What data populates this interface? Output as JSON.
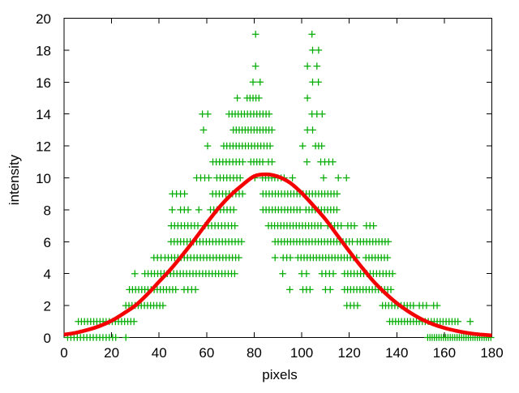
{
  "chart_data": {
    "type": "scatter",
    "title": "",
    "xlabel": "pixels",
    "ylabel": "intensity",
    "xlim": [
      0,
      180
    ],
    "ylim": [
      0,
      20
    ],
    "xtick_step": 20,
    "ytick_step": 2,
    "grid": false,
    "legend": "none",
    "marker_color": "#00ac00",
    "curve_color": "#f40000",
    "marker": "plus",
    "scatter_points_by_row": [
      {
        "y": 0,
        "segments": [
          [
            1.5,
            22,
            1.35
          ],
          [
            153,
            180,
            0.95
          ]
        ],
        "singles": [
          26
        ]
      },
      {
        "y": 1,
        "segments": [
          [
            6,
            30.5,
            1.3
          ],
          [
            137,
            166,
            1.25
          ]
        ],
        "singles": [
          170.9
        ]
      },
      {
        "y": 2,
        "segments": [
          [
            26,
            42.5,
            1.3
          ],
          [
            119,
            123.5,
            1.5
          ],
          [
            134,
            148,
            1.3
          ],
          [
            149.5,
            152.5,
            1.5
          ]
        ],
        "singles": [
          155.5,
          157
        ]
      },
      {
        "y": 3,
        "segments": [
          [
            27.5,
            47.5,
            1.3
          ],
          [
            50.5,
            55.5,
            1.6
          ],
          [
            118,
            137.5,
            1.3
          ]
        ],
        "singles": [
          95,
          100.5,
          102,
          103.5,
          110,
          112
        ]
      },
      {
        "y": 4,
        "segments": [
          [
            34,
            72,
            1.35
          ],
          [
            108.5,
            113.5,
            1.6
          ],
          [
            118,
            139,
            1.35
          ]
        ],
        "singles": [
          29.8,
          92,
          100,
          102
        ]
      },
      {
        "y": 5,
        "segments": [
          [
            37.8,
            40.8,
            1.5
          ],
          [
            42.5,
            74.5,
            1.35
          ],
          [
            92.2,
            95.2,
            1.5
          ],
          [
            98.4,
            124.2,
            1.3
          ],
          [
            127,
            137,
            1.3
          ]
        ],
        "singles": [
          88.8
        ]
      },
      {
        "y": 6,
        "segments": [
          [
            45,
            75,
            1.35
          ],
          [
            88.8,
            121.7,
            1.3
          ],
          [
            123.4,
            136.5,
            1.3
          ]
        ],
        "singles": []
      },
      {
        "y": 7,
        "segments": [
          [
            45.1,
            56.5,
            1.4
          ],
          [
            59.3,
            72.8,
            1.4
          ],
          [
            86,
            109.2,
            1.3
          ],
          [
            111,
            116.6,
            1.4
          ],
          [
            119.4,
            122.2,
            1.4
          ],
          [
            127.2,
            130.3,
            1.5
          ]
        ],
        "singles": []
      },
      {
        "y": 8,
        "segments": [
          [
            49,
            52.3,
            1.6
          ],
          [
            61.6,
            71.8,
            1.4
          ],
          [
            83.7,
            100.1,
            1.3
          ],
          [
            101.8,
            115.4,
            1.3
          ]
        ],
        "singles": [
          45.5,
          56.7
        ]
      },
      {
        "y": 9,
        "segments": [
          [
            45.6,
            50.7,
            1.7
          ],
          [
            62.5,
            76.2,
            1.4
          ],
          [
            83.7,
            116,
            1.3
          ]
        ],
        "singles": []
      },
      {
        "y": 10,
        "segments": [
          [
            55.8,
            61,
            1.7
          ],
          [
            64.3,
            75,
            1.4
          ],
          [
            83.5,
            93,
            1.3
          ]
        ],
        "singles": [
          80.3,
          96.1,
          109.2,
          115.4,
          118.8
        ]
      },
      {
        "y": 11,
        "segments": [
          [
            62.6,
            76.3,
            1.4
          ],
          [
            78.6,
            83.7,
            1.25
          ],
          [
            86,
            87.7,
            1.5
          ],
          [
            108,
            113.2,
            1.7
          ]
        ],
        "singles": [
          102.2
        ]
      },
      {
        "y": 12,
        "segments": [
          [
            67.2,
            87.7,
            1.3
          ],
          [
            105.8,
            108.5,
            1.3
          ]
        ],
        "singles": [
          60.4,
          100.4
        ]
      },
      {
        "y": 13,
        "segments": [
          [
            71.2,
            87.5,
            1.25
          ]
        ],
        "singles": [
          58.7,
          102.4,
          104.6
        ]
      },
      {
        "y": 14,
        "segments": [
          [
            69.4,
            86.4,
            1.3
          ]
        ],
        "singles": [
          58.2,
          60.5,
          104.3,
          106.4,
          108.6
        ]
      },
      {
        "y": 15,
        "segments": [
          [
            77,
            82,
            1.25
          ]
        ],
        "singles": [
          72.9,
          102.4
        ]
      },
      {
        "y": 16,
        "segments": [],
        "singles": [
          79.5,
          82.5,
          104.6,
          107
        ]
      },
      {
        "y": 17,
        "segments": [],
        "singles": [
          80.6,
          102.4,
          106.4
        ]
      },
      {
        "y": 18,
        "segments": [],
        "singles": [
          104.6,
          107.1
        ]
      },
      {
        "y": 19,
        "segments": [],
        "singles": [
          80.6,
          104.3
        ]
      }
    ],
    "fit_curve": {
      "shape": "bell",
      "sample_x": [
        0,
        5,
        10,
        15,
        20,
        25,
        30,
        35,
        40,
        45,
        50,
        55,
        60,
        65,
        70,
        75,
        80,
        85,
        90,
        95,
        100,
        105,
        110,
        115,
        120,
        125,
        130,
        135,
        140,
        145,
        150,
        155,
        160,
        165,
        170,
        175,
        180
      ],
      "sample_y": [
        0.18,
        0.3,
        0.48,
        0.72,
        1.05,
        1.5,
        2.0,
        2.7,
        3.5,
        4.3,
        5.2,
        6.15,
        7.15,
        8.1,
        8.9,
        9.55,
        10.1,
        10.22,
        10.08,
        9.7,
        9.05,
        8.25,
        7.4,
        6.4,
        5.4,
        4.45,
        3.55,
        2.8,
        2.15,
        1.62,
        1.18,
        0.85,
        0.6,
        0.42,
        0.28,
        0.19,
        0.13
      ]
    }
  }
}
